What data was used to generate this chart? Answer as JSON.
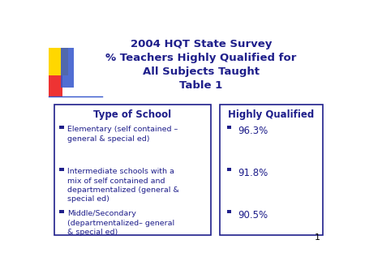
{
  "title_line1": "2004 HQT State Survey",
  "title_line2": "% Teachers Highly Qualified for",
  "title_line3": "All Subjects Taught",
  "title_line4": "Table 1",
  "title_color": "#1F1F8B",
  "bg_color": "#FFFFFF",
  "left_header": "Type of School",
  "right_header": "Highly Qualified",
  "header_color": "#1F1F8B",
  "left_items": [
    "Elementary (self contained –\ngeneral & special ed)",
    "Intermediate schools with a\nmix of self contained and\ndepartmentalized (general &\nspecial ed)",
    "Middle/Secondary\n(departmentalized– general\n& special ed)"
  ],
  "right_items": [
    "96.3%",
    "91.8%",
    "90.5%"
  ],
  "text_color": "#1F1F8B",
  "box_edge_color": "#1F1F8B",
  "bullet_color": "#1F1F8B",
  "page_number": "1"
}
